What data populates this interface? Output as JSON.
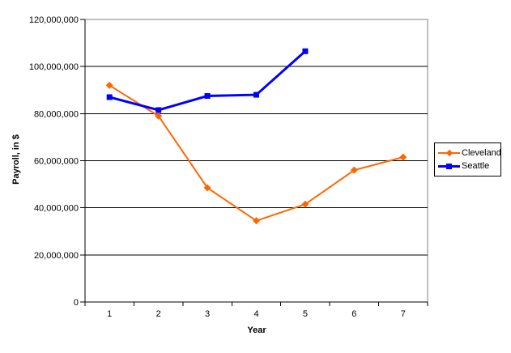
{
  "chart_data": {
    "type": "line",
    "x": [
      "1",
      "2",
      "3",
      "4",
      "5",
      "6",
      "7"
    ],
    "series": [
      {
        "name": "Cleveland",
        "color": "#FF6600",
        "marker": "diamond",
        "values": [
          92000000,
          79000000,
          48500000,
          34500000,
          41500000,
          56000000,
          61500000
        ]
      },
      {
        "name": "Seattle",
        "color": "#0000FF",
        "marker": "square",
        "values": [
          87000000,
          81500000,
          87500000,
          88000000,
          106500000,
          null,
          null
        ]
      }
    ],
    "title": "",
    "xlabel": "Year",
    "ylabel": "Payroll, in $",
    "ylim": [
      0,
      120000000
    ],
    "y_tick_step": 20000000,
    "y_tick_labels": [
      "0",
      "20,000,000",
      "40,000,000",
      "60,000,000",
      "80,000,000",
      "100,000,000",
      "120,000,000"
    ],
    "grid": true,
    "legend_position": "right",
    "colors": {
      "gridline": "#000000",
      "plot_border": "#808080",
      "axis": "#000000",
      "text": "#000000",
      "background": "#FFFFFF"
    }
  }
}
